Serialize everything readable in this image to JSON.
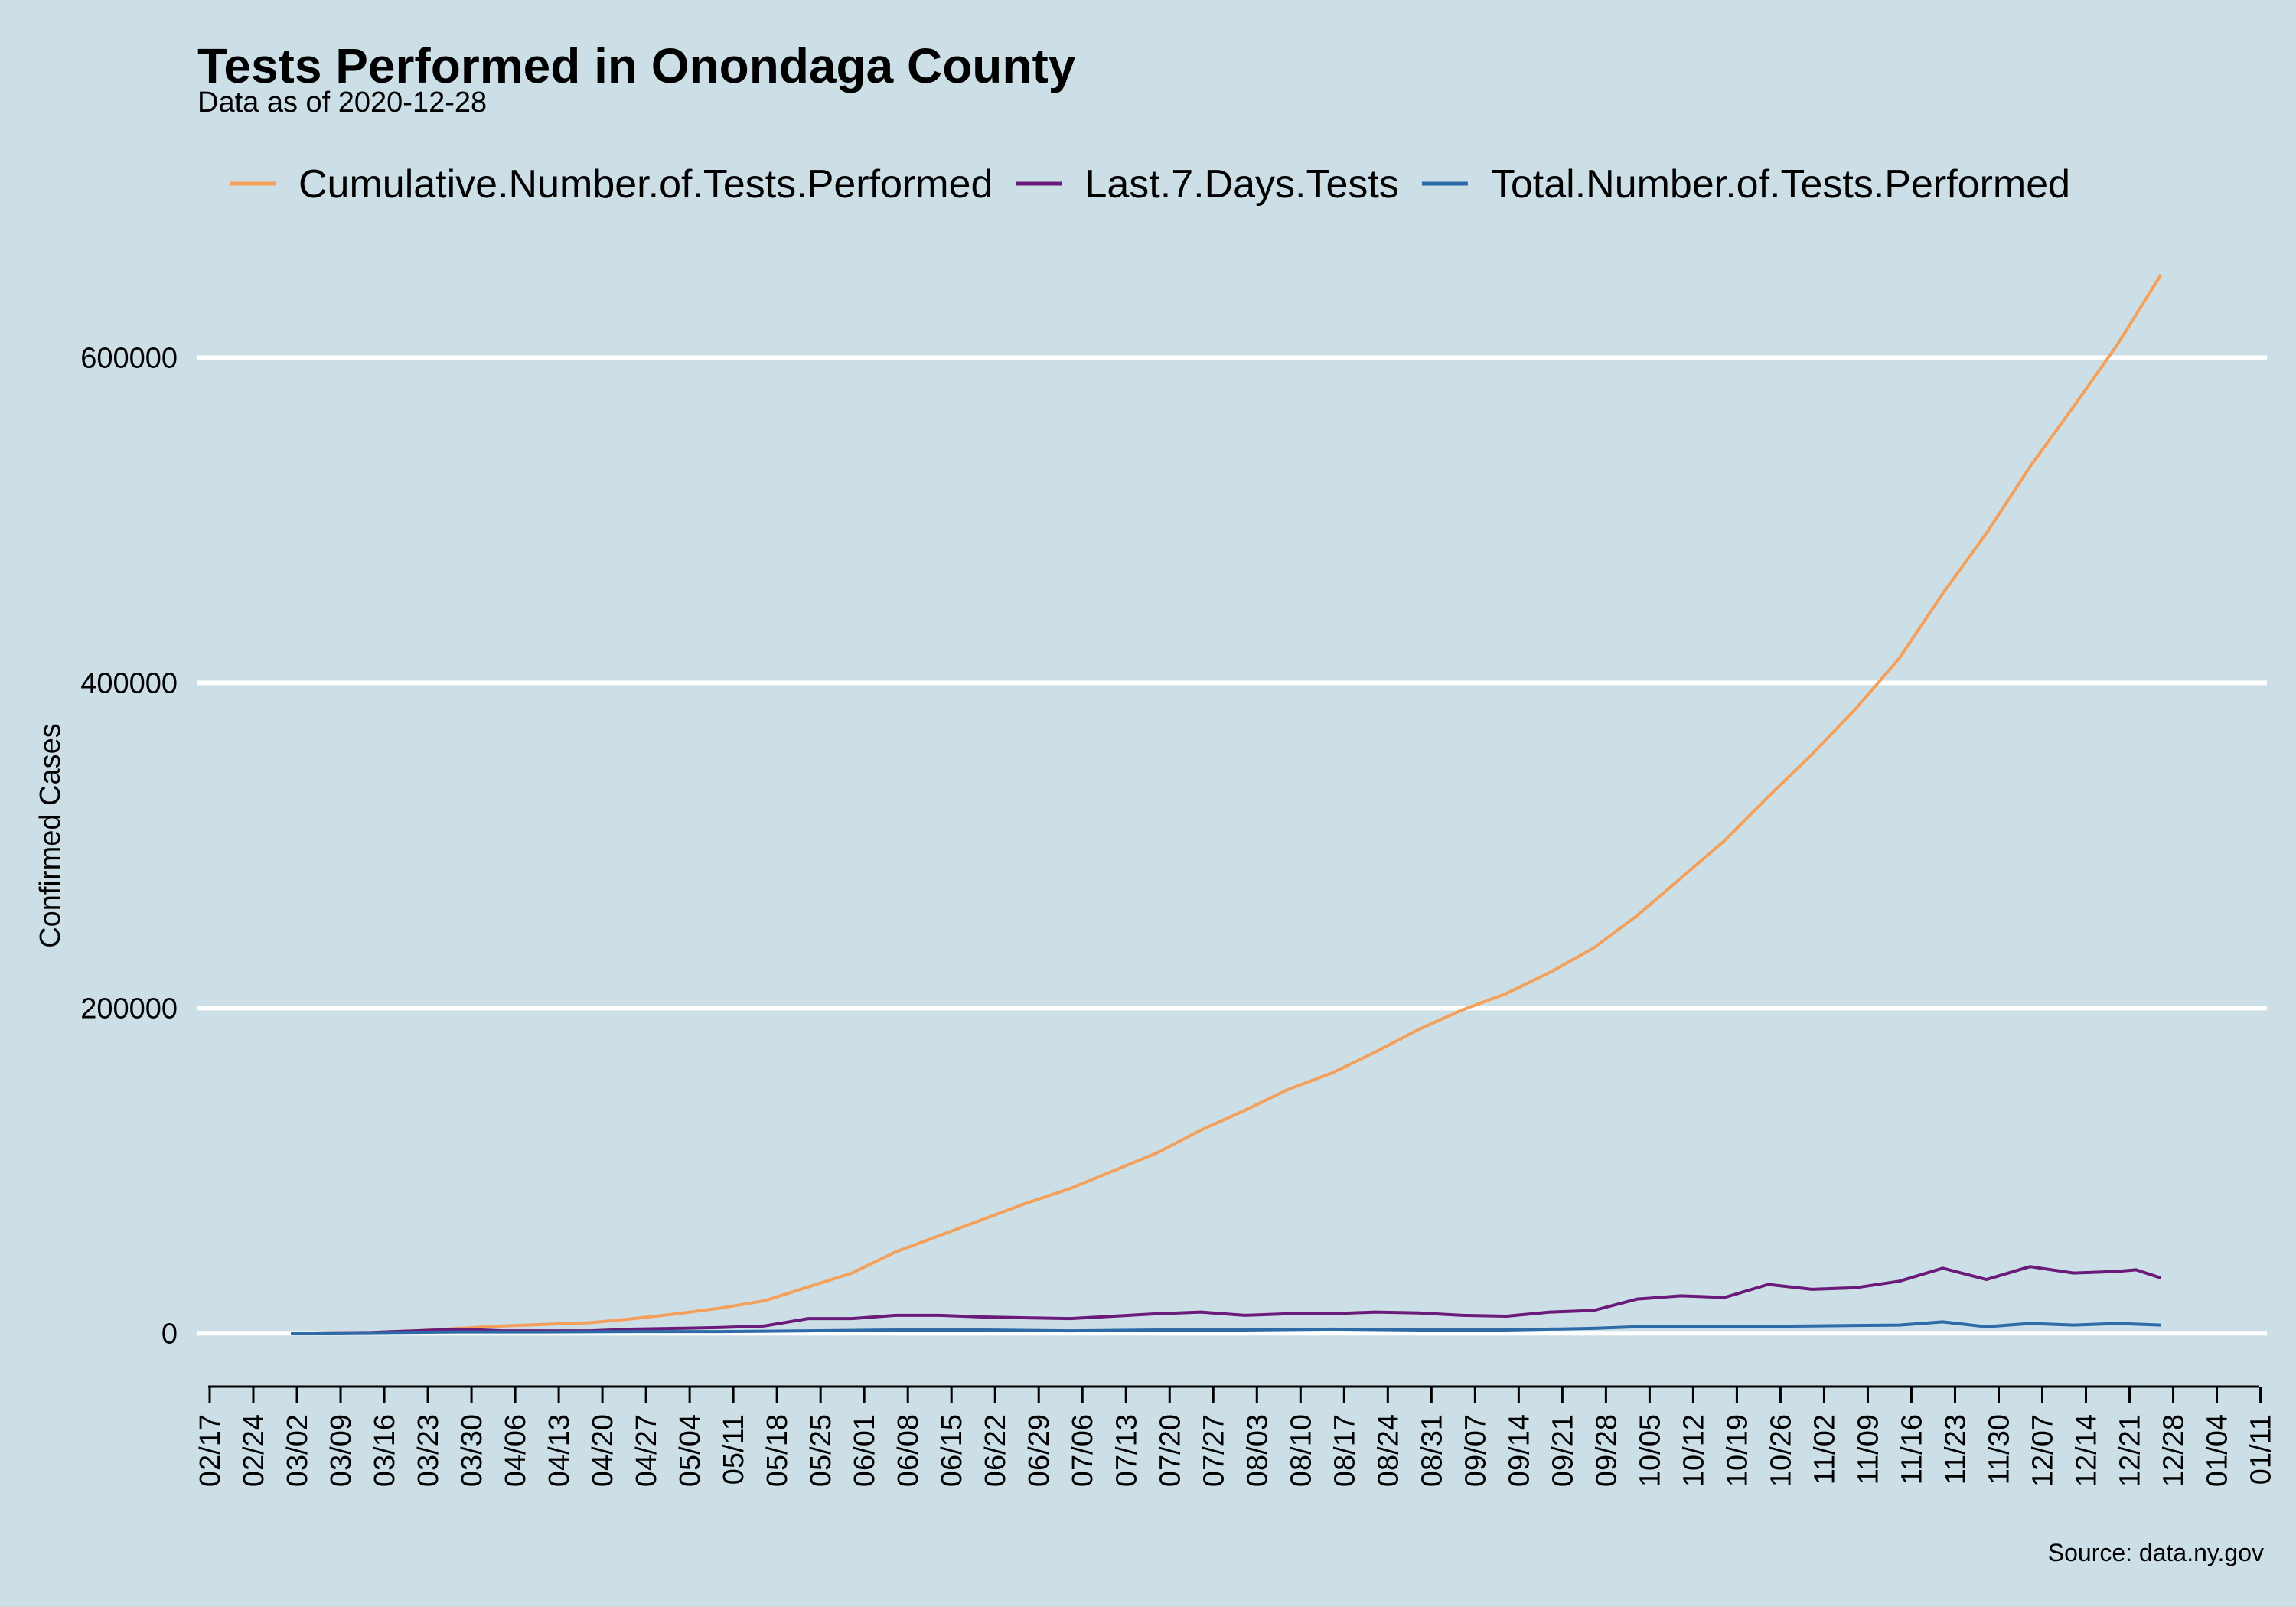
{
  "chart_data": {
    "type": "line",
    "title": "Tests Performed in Onondaga County",
    "subtitle": "Data as of 2020-12-28",
    "xlabel": "",
    "ylabel": "Confirmed Cases",
    "caption": "Source: data.ny.gov",
    "legend_position": "top",
    "grid": "horizontal major only",
    "ylim": [
      -30000,
      660000
    ],
    "yticks": [
      0,
      200000,
      400000,
      600000
    ],
    "ytick_labels": [
      "0",
      "200000",
      "400000",
      "600000"
    ],
    "xlim": [
      "2020-02-17",
      "2021-01-14"
    ],
    "xtick_dates": [
      "2020-02-17",
      "2020-02-24",
      "2020-03-02",
      "2020-03-09",
      "2020-03-16",
      "2020-03-23",
      "2020-03-30",
      "2020-04-06",
      "2020-04-13",
      "2020-04-20",
      "2020-04-27",
      "2020-05-04",
      "2020-05-11",
      "2020-05-18",
      "2020-05-25",
      "2020-06-01",
      "2020-06-08",
      "2020-06-15",
      "2020-06-22",
      "2020-06-29",
      "2020-07-06",
      "2020-07-13",
      "2020-07-20",
      "2020-07-27",
      "2020-08-03",
      "2020-08-10",
      "2020-08-17",
      "2020-08-24",
      "2020-08-31",
      "2020-09-07",
      "2020-09-14",
      "2020-09-21",
      "2020-09-28",
      "2020-10-05",
      "2020-10-12",
      "2020-10-19",
      "2020-10-26",
      "2020-11-02",
      "2020-11-09",
      "2020-11-16",
      "2020-11-23",
      "2020-11-30",
      "2020-12-07",
      "2020-12-14",
      "2020-12-21",
      "2020-12-28",
      "2021-01-04",
      "2021-01-11"
    ],
    "xtick_labels": [
      "02/17",
      "02/24",
      "03/02",
      "03/09",
      "03/16",
      "03/23",
      "03/30",
      "04/06",
      "04/13",
      "04/20",
      "04/27",
      "05/04",
      "05/11",
      "05/18",
      "05/25",
      "06/01",
      "06/08",
      "06/15",
      "06/22",
      "06/29",
      "07/06",
      "07/13",
      "07/20",
      "07/27",
      "08/03",
      "08/10",
      "08/17",
      "08/24",
      "08/31",
      "09/07",
      "09/14",
      "09/21",
      "09/28",
      "10/05",
      "10/12",
      "10/19",
      "10/26",
      "11/02",
      "11/09",
      "11/16",
      "11/23",
      "11/30",
      "12/07",
      "12/14",
      "12/21",
      "12/28",
      "01/04",
      "01/11"
    ],
    "series": [
      {
        "name": "Cumulative.Number.of.Tests.Performed",
        "color": "#f4a05a",
        "points": [
          [
            "2020-03-03",
            0
          ],
          [
            "2020-03-16",
            500
          ],
          [
            "2020-03-23",
            1500
          ],
          [
            "2020-03-30",
            3000
          ],
          [
            "2020-04-06",
            4500
          ],
          [
            "2020-04-13",
            5500
          ],
          [
            "2020-04-20",
            6500
          ],
          [
            "2020-04-27",
            9000
          ],
          [
            "2020-05-04",
            12000
          ],
          [
            "2020-05-11",
            15500
          ],
          [
            "2020-05-18",
            20000
          ],
          [
            "2020-05-25",
            28500
          ],
          [
            "2020-06-01",
            37000
          ],
          [
            "2020-06-08",
            50000
          ],
          [
            "2020-06-15",
            60000
          ],
          [
            "2020-06-22",
            70000
          ],
          [
            "2020-06-29",
            80000
          ],
          [
            "2020-07-06",
            89000
          ],
          [
            "2020-07-13",
            100000
          ],
          [
            "2020-07-20",
            111000
          ],
          [
            "2020-07-27",
            125000
          ],
          [
            "2020-08-03",
            137000
          ],
          [
            "2020-08-10",
            150000
          ],
          [
            "2020-08-17",
            160000
          ],
          [
            "2020-08-24",
            173000
          ],
          [
            "2020-08-31",
            187000
          ],
          [
            "2020-09-07",
            199000
          ],
          [
            "2020-09-14",
            209000
          ],
          [
            "2020-09-21",
            222000
          ],
          [
            "2020-09-28",
            237000
          ],
          [
            "2020-10-05",
            257000
          ],
          [
            "2020-10-12",
            280000
          ],
          [
            "2020-10-19",
            303000
          ],
          [
            "2020-10-26",
            330000
          ],
          [
            "2020-11-02",
            356000
          ],
          [
            "2020-11-09",
            384000
          ],
          [
            "2020-11-16",
            415000
          ],
          [
            "2020-11-23",
            455000
          ],
          [
            "2020-11-30",
            492000
          ],
          [
            "2020-12-07",
            533000
          ],
          [
            "2020-12-14",
            570000
          ],
          [
            "2020-12-21",
            608000
          ],
          [
            "2020-12-28",
            651000
          ]
        ]
      },
      {
        "name": "Last.7.Days.Tests",
        "color": "#6a1b7a",
        "points": [
          [
            "2020-03-03",
            0
          ],
          [
            "2020-03-16",
            500
          ],
          [
            "2020-03-23",
            1500
          ],
          [
            "2020-03-30",
            2500
          ],
          [
            "2020-04-06",
            1500
          ],
          [
            "2020-04-13",
            1500
          ],
          [
            "2020-04-20",
            1500
          ],
          [
            "2020-04-27",
            2500
          ],
          [
            "2020-05-04",
            3000
          ],
          [
            "2020-05-11",
            3500
          ],
          [
            "2020-05-18",
            4500
          ],
          [
            "2020-05-25",
            9000
          ],
          [
            "2020-06-01",
            9000
          ],
          [
            "2020-06-08",
            11000
          ],
          [
            "2020-06-15",
            11000
          ],
          [
            "2020-06-22",
            10000
          ],
          [
            "2020-06-29",
            9500
          ],
          [
            "2020-07-06",
            9000
          ],
          [
            "2020-07-13",
            10500
          ],
          [
            "2020-07-20",
            12000
          ],
          [
            "2020-07-27",
            13000
          ],
          [
            "2020-08-03",
            11000
          ],
          [
            "2020-08-10",
            12000
          ],
          [
            "2020-08-17",
            12000
          ],
          [
            "2020-08-24",
            13000
          ],
          [
            "2020-08-31",
            12500
          ],
          [
            "2020-09-07",
            11000
          ],
          [
            "2020-09-14",
            10500
          ],
          [
            "2020-09-21",
            13000
          ],
          [
            "2020-09-28",
            14000
          ],
          [
            "2020-10-05",
            21000
          ],
          [
            "2020-10-12",
            23000
          ],
          [
            "2020-10-19",
            22000
          ],
          [
            "2020-10-26",
            30000
          ],
          [
            "2020-11-02",
            27000
          ],
          [
            "2020-11-09",
            28000
          ],
          [
            "2020-11-16",
            32000
          ],
          [
            "2020-11-23",
            40000
          ],
          [
            "2020-11-30",
            33000
          ],
          [
            "2020-12-07",
            41000
          ],
          [
            "2020-12-14",
            37000
          ],
          [
            "2020-12-21",
            38000
          ],
          [
            "2020-12-24",
            39000
          ],
          [
            "2020-12-28",
            34000
          ]
        ]
      },
      {
        "name": "Total.Number.of.Tests.Performed",
        "color": "#2c6aa8",
        "points": [
          [
            "2020-03-03",
            0
          ],
          [
            "2020-03-16",
            300
          ],
          [
            "2020-03-30",
            800
          ],
          [
            "2020-04-13",
            800
          ],
          [
            "2020-04-27",
            1000
          ],
          [
            "2020-05-11",
            1000
          ],
          [
            "2020-05-25",
            1500
          ],
          [
            "2020-06-08",
            2000
          ],
          [
            "2020-06-22",
            2000
          ],
          [
            "2020-07-06",
            1500
          ],
          [
            "2020-07-20",
            2000
          ],
          [
            "2020-08-03",
            2000
          ],
          [
            "2020-08-17",
            2500
          ],
          [
            "2020-08-31",
            2000
          ],
          [
            "2020-09-14",
            2000
          ],
          [
            "2020-09-28",
            3000
          ],
          [
            "2020-10-05",
            4000
          ],
          [
            "2020-10-19",
            4000
          ],
          [
            "2020-11-02",
            4500
          ],
          [
            "2020-11-16",
            5000
          ],
          [
            "2020-11-23",
            7000
          ],
          [
            "2020-11-30",
            4000
          ],
          [
            "2020-12-07",
            6000
          ],
          [
            "2020-12-14",
            5000
          ],
          [
            "2020-12-21",
            6000
          ],
          [
            "2020-12-28",
            5000
          ]
        ]
      }
    ]
  }
}
